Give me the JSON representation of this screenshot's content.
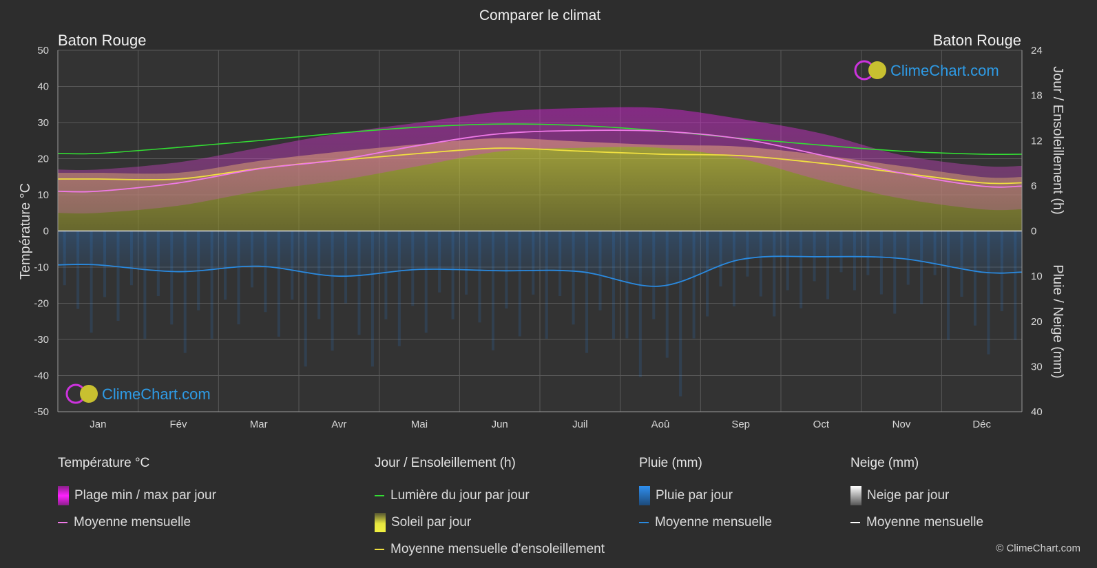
{
  "header": {
    "title": "Comparer le climat"
  },
  "location_left": "Baton Rouge",
  "location_right": "Baton Rouge",
  "logo_text": "ClimeChart.com",
  "copyright": "© ClimeChart.com",
  "legend": {
    "temperature": {
      "title": "Température °C",
      "range_label": "Plage min / max par jour",
      "mean_label": "Moyenne mensuelle"
    },
    "sun": {
      "title": "Jour / Ensoleillement (h)",
      "daylight_label": "Lumière du jour par jour",
      "sun_label": "Soleil par jour",
      "mean_label": "Moyenne mensuelle d'ensoleillement"
    },
    "rain": {
      "title": "Pluie (mm)",
      "rain_label": "Pluie par jour",
      "mean_label": "Moyenne mensuelle"
    },
    "snow": {
      "title": "Neige (mm)",
      "snow_label": "Neige par jour",
      "mean_label": "Moyenne mensuelle"
    }
  },
  "colors": {
    "background": "#2d2d2d",
    "grid": "#5a5a5a",
    "temp_range": "#e020e0",
    "temp_mean": "#f07ae8",
    "daylight": "#33dd33",
    "sunshine": "#c9c93a",
    "sunshine_mean": "#f0e040",
    "rain": "#2f7fd6",
    "rain_mean": "#2a8ae0",
    "snow": "#ffffff",
    "logo": "#2e9be6"
  },
  "chart_data": {
    "type": "area",
    "months": [
      "Jan",
      "Fév",
      "Mar",
      "Avr",
      "Mai",
      "Jun",
      "Juil",
      "Aoû",
      "Sep",
      "Oct",
      "Nov",
      "Déc"
    ],
    "axes": {
      "left": {
        "label": "Température °C",
        "range": [
          -50,
          50
        ],
        "ticks": [
          50,
          40,
          30,
          20,
          10,
          0,
          -10,
          -20,
          -30,
          -40,
          -50
        ]
      },
      "right_top": {
        "label": "Jour / Ensoleillement (h)",
        "range": [
          0,
          24
        ],
        "ticks": [
          24,
          18,
          12,
          6,
          0
        ]
      },
      "right_bottom": {
        "label": "Pluie / Neige (mm)",
        "range": [
          0,
          40
        ],
        "ticks": [
          0,
          10,
          20,
          30,
          40
        ]
      }
    },
    "grid": true,
    "series": [
      {
        "name": "Lumière du jour par jour",
        "unit": "h",
        "values": [
          10.3,
          11.1,
          12.0,
          13.0,
          13.8,
          14.2,
          14.0,
          13.3,
          12.3,
          11.4,
          10.6,
          10.2
        ]
      },
      {
        "name": "Moyenne mensuelle d'ensoleillement",
        "unit": "h",
        "values": [
          6.9,
          6.9,
          8.3,
          9.4,
          10.3,
          11.0,
          10.6,
          10.2,
          10.0,
          9.0,
          7.7,
          6.4
        ]
      },
      {
        "name": "Moyenne mensuelle",
        "unit": "°C",
        "values": [
          11.0,
          13.3,
          17.2,
          19.7,
          23.7,
          26.9,
          27.8,
          27.6,
          25.5,
          21.0,
          16.0,
          12.4
        ]
      },
      {
        "name": "Plage min / max par jour (max)",
        "unit": "°C",
        "values": [
          17,
          19,
          23,
          27,
          30,
          33,
          34,
          34,
          31,
          27,
          21,
          18
        ]
      },
      {
        "name": "Plage min / max par jour (min)",
        "unit": "°C",
        "values": [
          5,
          7,
          11,
          14,
          18,
          22,
          23,
          23,
          20,
          14,
          9,
          6
        ]
      },
      {
        "name": "Pluie moyenne mensuelle",
        "unit": "mm",
        "values": [
          7.5,
          9.0,
          7.8,
          10.0,
          8.5,
          8.8,
          9.0,
          12.2,
          6.3,
          5.7,
          6.1,
          9.1
        ]
      }
    ]
  }
}
